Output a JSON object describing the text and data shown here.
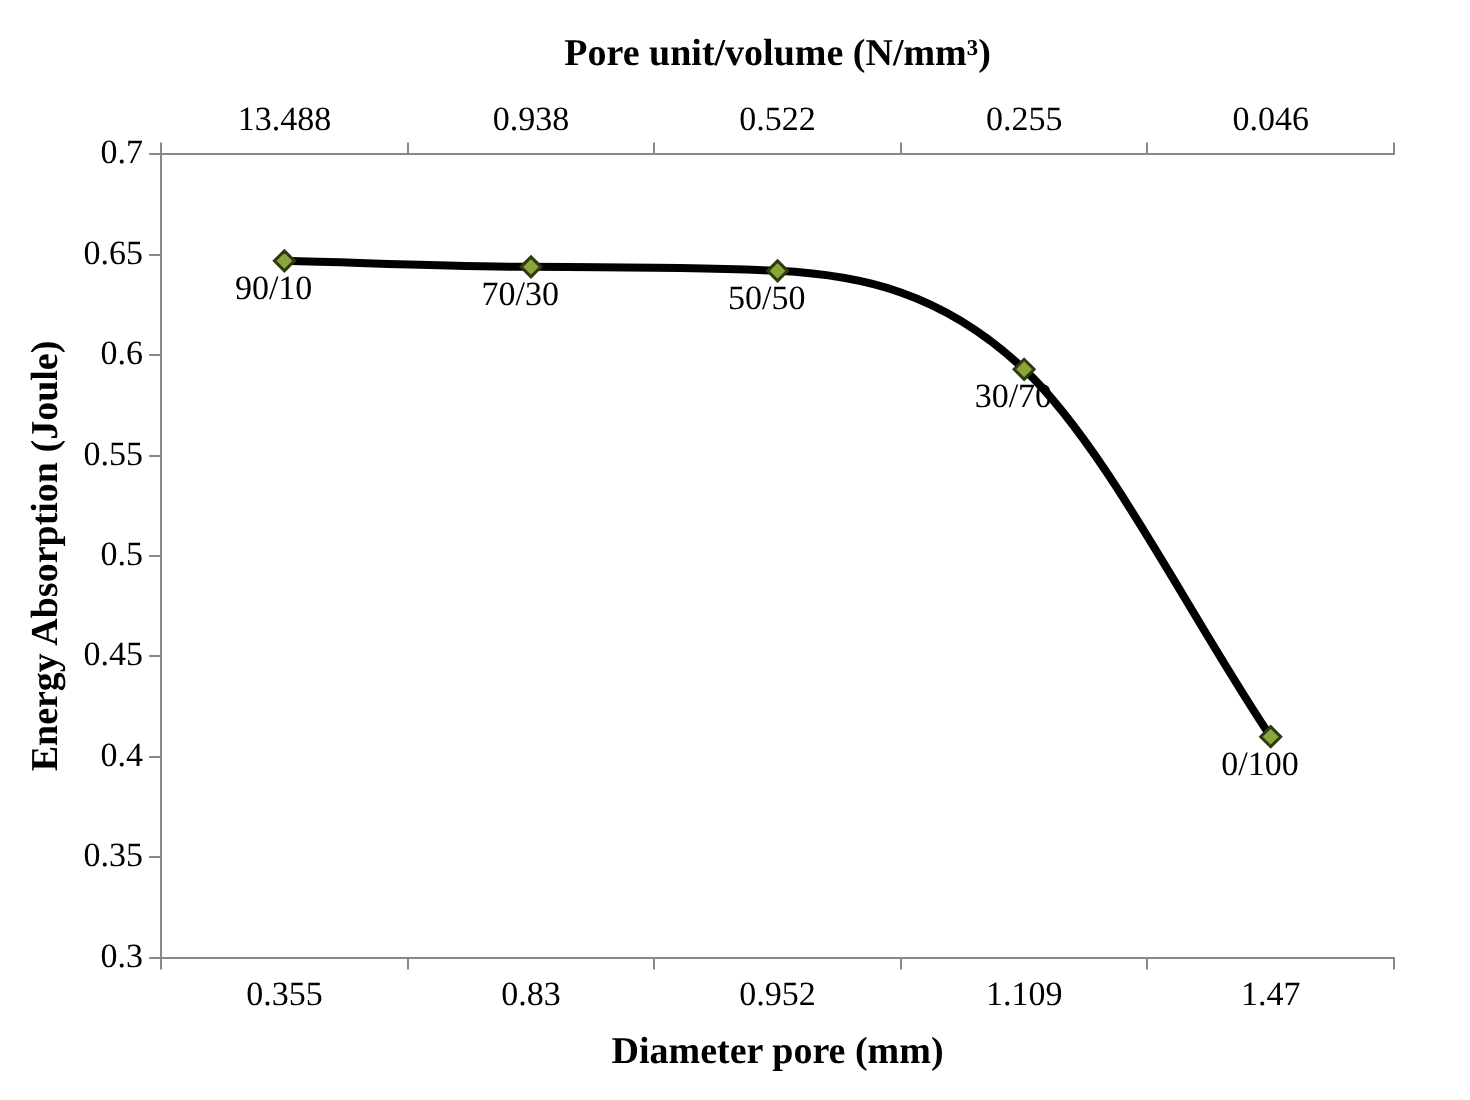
{
  "chart_data": {
    "type": "line",
    "xlabel": "Diameter pore (mm)",
    "ylabel": "Energy Absorption (Joule)",
    "x2label": "Pore unit/volume (N/mm³)",
    "categories": [
      "0.355",
      "0.83",
      "0.952",
      "1.109",
      "1.47"
    ],
    "annotations": [
      "13.488",
      "0.938",
      "0.522",
      "0.255",
      "0.046"
    ],
    "series": [
      {
        "color": "#000000",
        "values": [
          0.647,
          0.644,
          0.642,
          0.593,
          0.41
        ],
        "value_labels": [
          "90/10",
          "70/30",
          "50/50",
          "30/70",
          "0/100"
        ]
      }
    ],
    "ylim": [
      0.3,
      0.7
    ],
    "yticks": [
      0.3,
      0.35,
      0.4,
      0.45,
      0.5,
      0.55,
      0.6,
      0.65,
      0.7
    ],
    "marker": "diamond",
    "line_style": "solid",
    "grid": false,
    "legend": false
  }
}
